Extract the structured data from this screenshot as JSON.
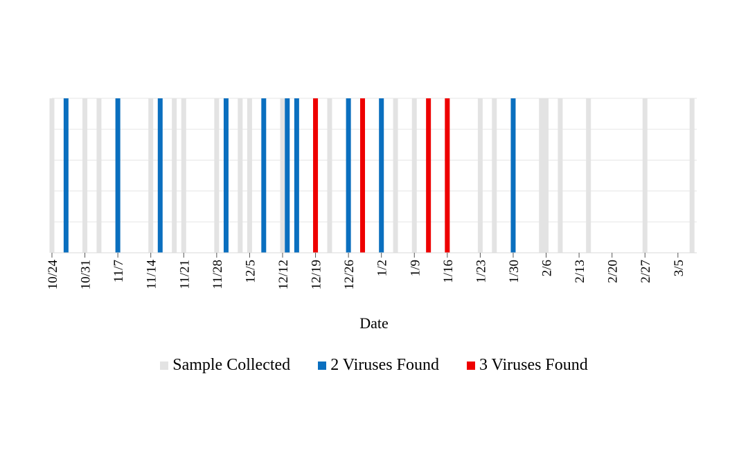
{
  "chart_data": {
    "type": "bar",
    "title": "",
    "xlabel": "Date",
    "ylabel": "",
    "x_tick_labels": [
      "10/24",
      "10/31",
      "11/7",
      "11/14",
      "11/21",
      "11/28",
      "12/5",
      "12/12",
      "12/19",
      "12/26",
      "1/2",
      "1/9",
      "1/16",
      "1/23",
      "1/30",
      "2/6",
      "2/13",
      "2/20",
      "2/27",
      "3/5"
    ],
    "x_start_day": 0,
    "tick_interval_days": 7,
    "x_range_days": [
      0,
      137
    ],
    "ylim": [
      0,
      5
    ],
    "gridlines": 5,
    "series": [
      {
        "name": "Sample Collected",
        "color": "#e3e3e3",
        "days": [
          0,
          7,
          10,
          14,
          21,
          26,
          28,
          35,
          40,
          42,
          49,
          56,
          59,
          63,
          70,
          73,
          77,
          84,
          91,
          94,
          98,
          104,
          105,
          108,
          114,
          126,
          136
        ]
      },
      {
        "name": "2 Viruses Found",
        "color": "#0a6fbf",
        "days": [
          3,
          14,
          23,
          37,
          45,
          50,
          52,
          63,
          70,
          98
        ]
      },
      {
        "name": "3 Viruses Found",
        "color": "#ee0000",
        "days": [
          56,
          66,
          80,
          84
        ]
      }
    ]
  },
  "legend": {
    "items": [
      {
        "label": "Sample Collected",
        "color": "#e3e3e3"
      },
      {
        "label": "2 Viruses Found",
        "color": "#0a6fbf"
      },
      {
        "label": "3 Viruses Found",
        "color": "#ee0000"
      }
    ]
  }
}
